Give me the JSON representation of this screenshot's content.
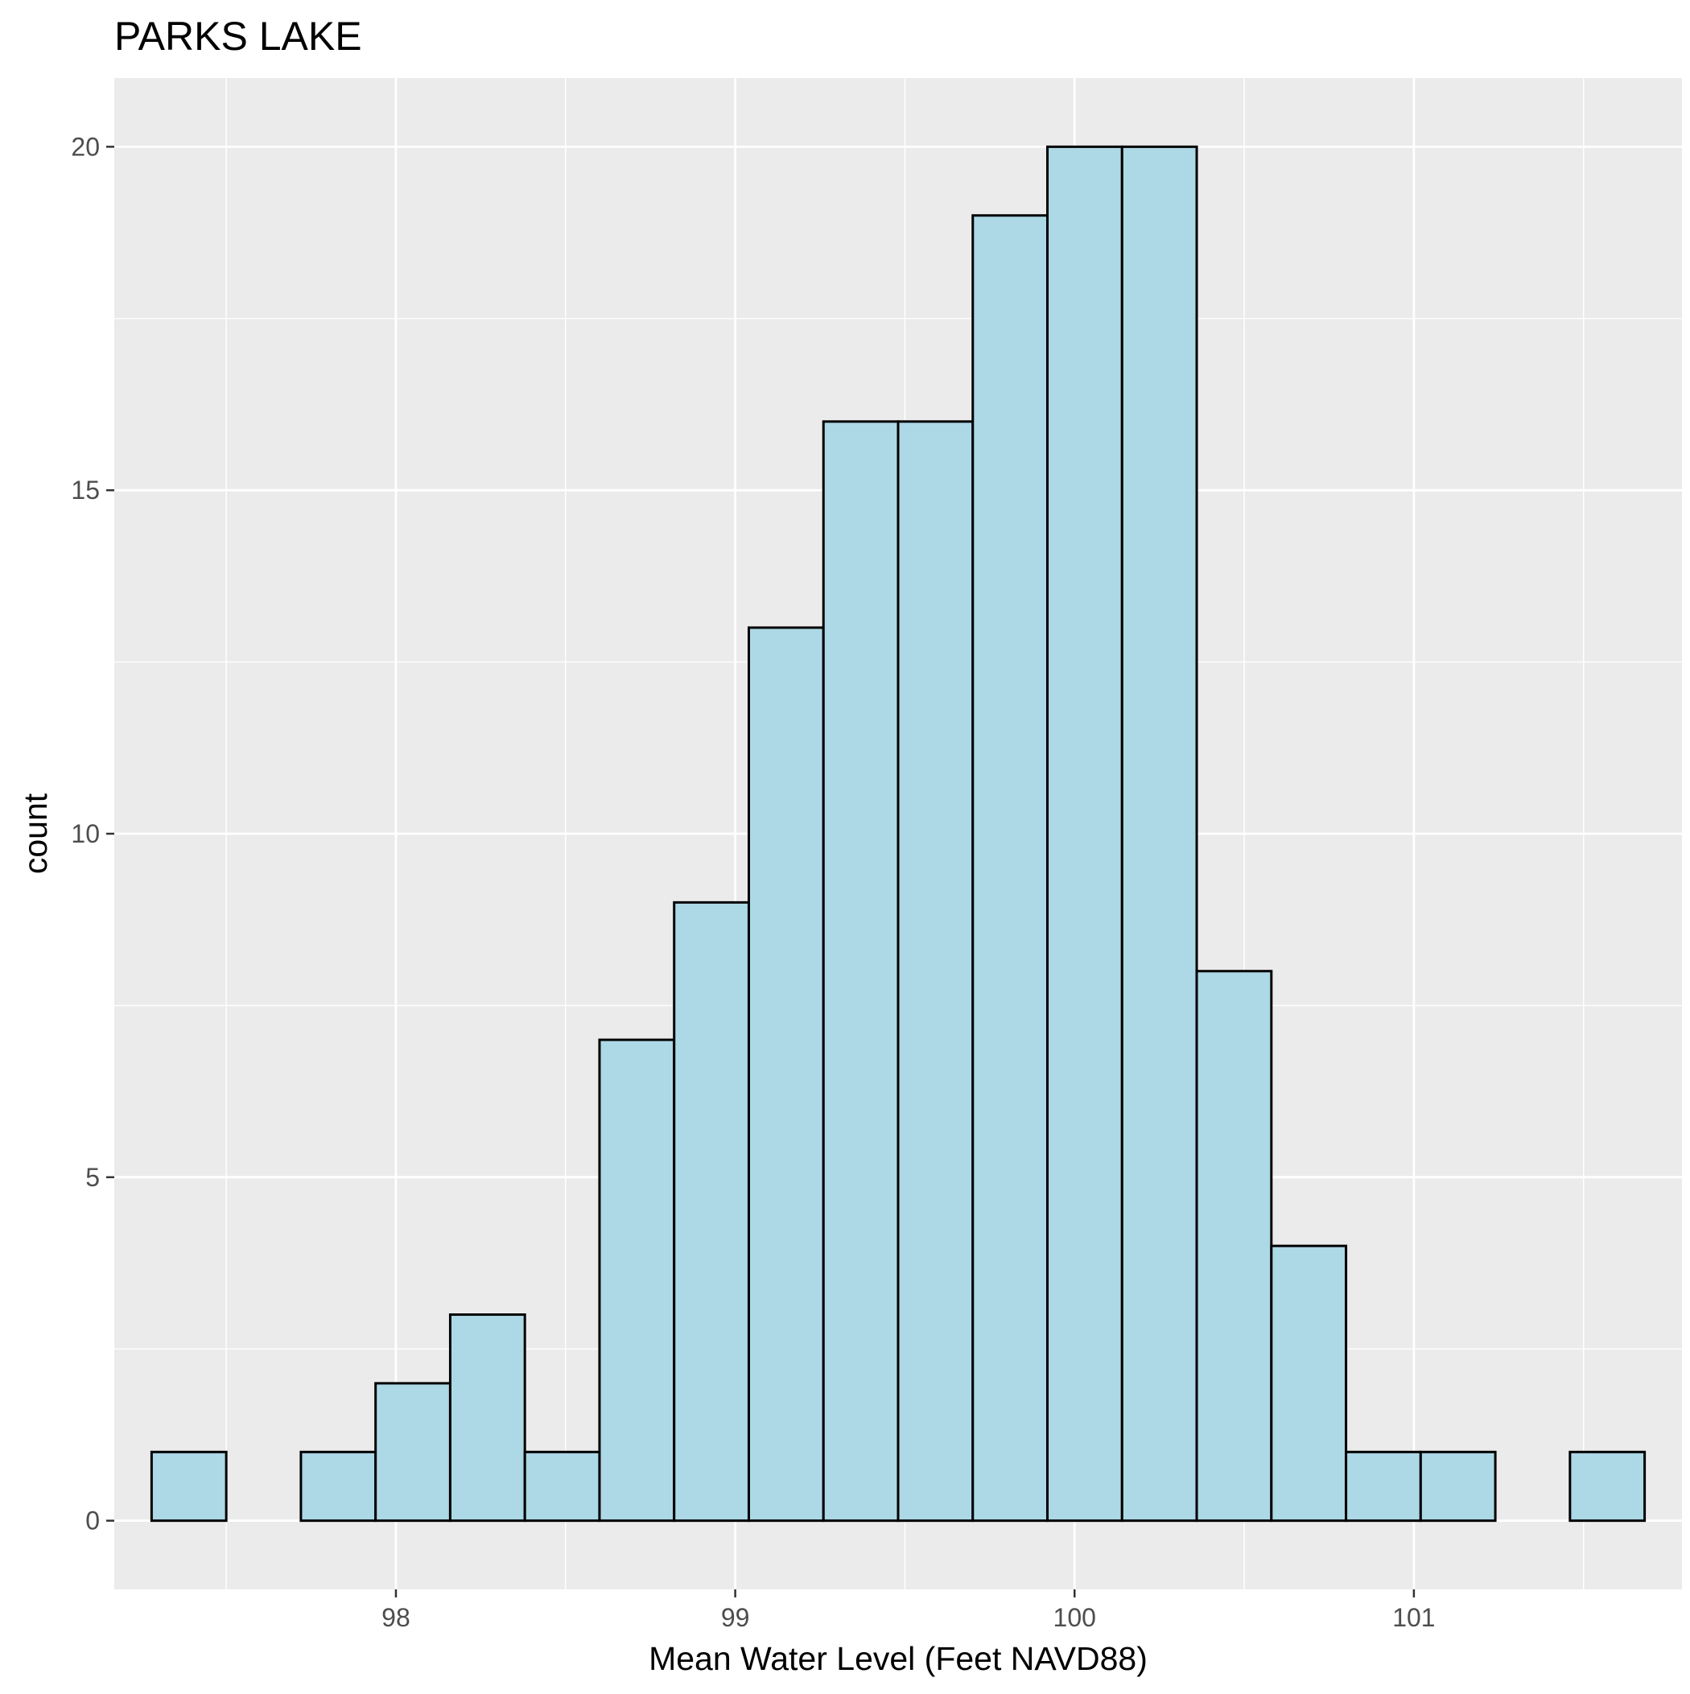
{
  "chart_data": {
    "type": "bar",
    "title": "PARKS LAKE",
    "xlabel": "Mean Water Level (Feet NAVD88)",
    "ylabel": "count",
    "bins": [
      {
        "x0": 97.28,
        "x1": 97.5,
        "count": 1
      },
      {
        "x0": 97.5,
        "x1": 97.72,
        "count": 0
      },
      {
        "x0": 97.72,
        "x1": 97.94,
        "count": 1
      },
      {
        "x0": 97.94,
        "x1": 98.16,
        "count": 2
      },
      {
        "x0": 98.16,
        "x1": 98.38,
        "count": 3
      },
      {
        "x0": 98.38,
        "x1": 98.6,
        "count": 1
      },
      {
        "x0": 98.6,
        "x1": 98.82,
        "count": 7
      },
      {
        "x0": 98.82,
        "x1": 99.04,
        "count": 9
      },
      {
        "x0": 99.04,
        "x1": 99.26,
        "count": 13
      },
      {
        "x0": 99.26,
        "x1": 99.48,
        "count": 16
      },
      {
        "x0": 99.48,
        "x1": 99.7,
        "count": 16
      },
      {
        "x0": 99.7,
        "x1": 99.92,
        "count": 19
      },
      {
        "x0": 99.92,
        "x1": 100.14,
        "count": 20
      },
      {
        "x0": 100.14,
        "x1": 100.36,
        "count": 20
      },
      {
        "x0": 100.36,
        "x1": 100.58,
        "count": 8
      },
      {
        "x0": 100.58,
        "x1": 100.8,
        "count": 4
      },
      {
        "x0": 100.8,
        "x1": 101.02,
        "count": 1
      },
      {
        "x0": 101.02,
        "x1": 101.24,
        "count": 1
      },
      {
        "x0": 101.24,
        "x1": 101.46,
        "count": 0
      },
      {
        "x0": 101.46,
        "x1": 101.68,
        "count": 1
      }
    ],
    "x_ticks": [
      98,
      99,
      100,
      101
    ],
    "x_tick_labels": [
      "98",
      "99",
      "100",
      "101"
    ],
    "y_ticks": [
      0,
      5,
      10,
      15,
      20
    ],
    "y_tick_labels": [
      "0",
      "5",
      "10",
      "15",
      "20"
    ],
    "xlim": [
      97.17,
      101.79
    ],
    "ylim": [
      -1,
      21
    ],
    "grid": true,
    "legend": "none",
    "colors": {
      "bar_fill": "#add8e6",
      "bar_stroke": "#000000",
      "panel_bg": "#ebebeb",
      "grid": "#ffffff",
      "tick_text": "#4d4d4d"
    }
  }
}
